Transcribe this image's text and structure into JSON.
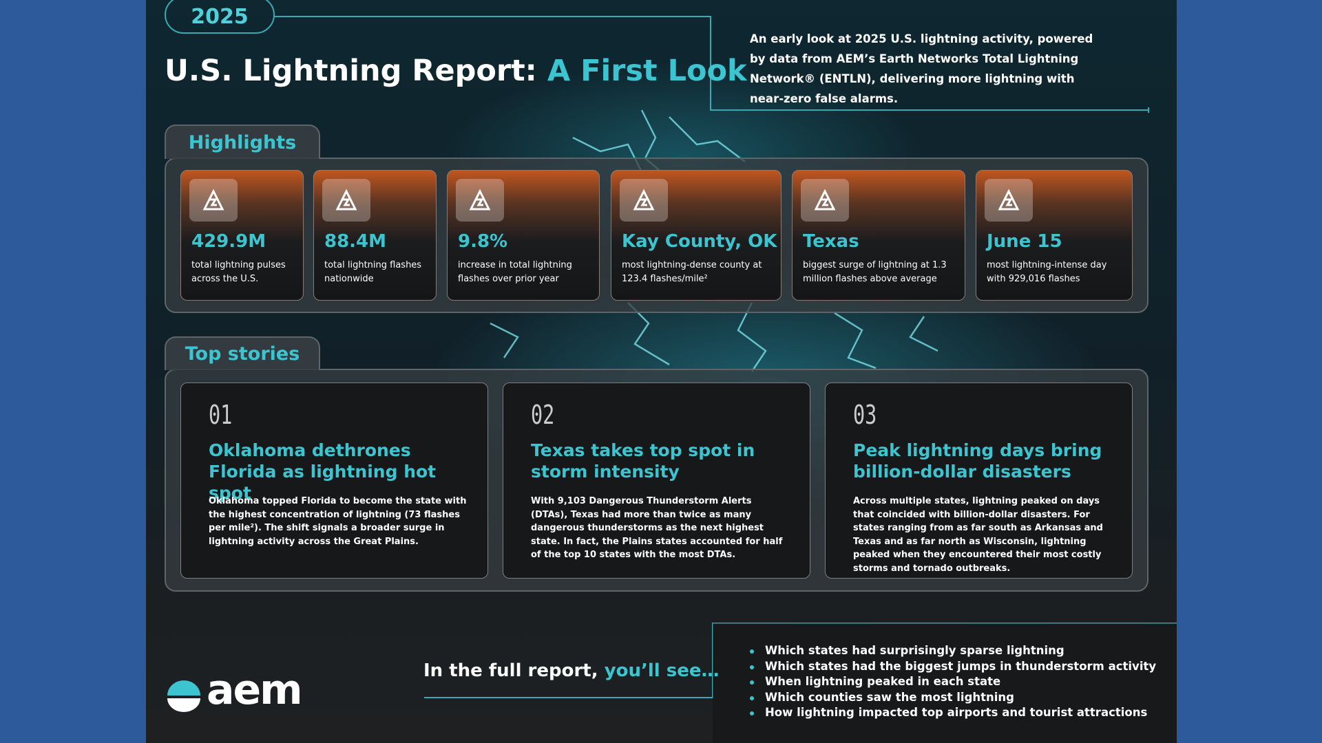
{
  "header": {
    "year": "2025",
    "title": "U.S. Lightning Report:",
    "title_accent": "A First Look",
    "intro": "An early look at 2025 U.S. lightning activity, powered by data from AEM’s Earth Networks Total Lightning Network® (ENTLN), delivering more lightning with near-zero false alarms."
  },
  "highlights": {
    "heading": "Highlights",
    "items": [
      {
        "value": "429.9M",
        "label": "total lightning pulses across the U.S."
      },
      {
        "value": "88.4M",
        "label": "total lightning flashes nationwide"
      },
      {
        "value": "9.8%",
        "label": "increase in total lightning flashes over prior year"
      },
      {
        "value": "Kay County, OK",
        "label": "most lightning-dense county at 123.4 flashes/mile²"
      },
      {
        "value": "Texas",
        "label": "biggest surge of lightning at 1.3 million flashes above average"
      },
      {
        "value": "June 15",
        "label": "most lightning-intense day with 929,016 flashes"
      }
    ]
  },
  "stories": {
    "heading": "Top stories",
    "items": [
      {
        "number": "01",
        "title": "Oklahoma dethrones Florida as lightning hot spot",
        "body": "Oklahoma topped Florida to become the state with the highest concentration of lightning (73 flashes per mile²). The shift signals a broader surge in lightning activity across the Great Plains."
      },
      {
        "number": "02",
        "title": "Texas takes top spot in storm intensity",
        "body": "With 9,103 Dangerous Thunderstorm Alerts (DTAs), Texas had more than twice as many dangerous thunderstorms as the next highest state. In fact, the Plains states accounted for half of the top 10 states with the most DTAs."
      },
      {
        "number": "03",
        "title": "Peak lightning days bring billion-dollar disasters",
        "body": "Across multiple states, lightning peaked on days that coincided with billion-dollar disasters. For states ranging from as far south as Arkansas and Texas and as far north as Wisconsin, lightning peaked when they encountered their most costly storms and tornado outbreaks."
      }
    ]
  },
  "footer": {
    "logo": "aem",
    "cta": "In the full report,",
    "cta_accent": "you’ll see…",
    "bullets": [
      "Which states had surprisingly sparse lightning",
      "Which states had the biggest jumps in thunderstorm activity",
      "When lightning peaked in each state",
      "Which counties saw the most lightning",
      "How lightning impacted top airports and tourist attractions"
    ]
  }
}
